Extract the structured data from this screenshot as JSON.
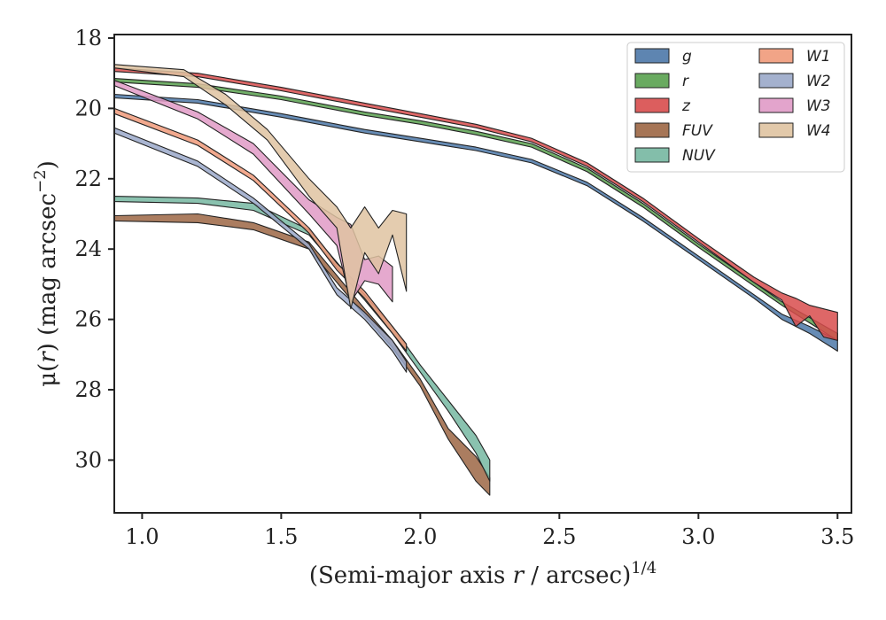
{
  "chart_data": {
    "type": "area",
    "xlabel": "(Semi-major axis r / arcsec)^1/4",
    "xlabel_parts": {
      "prefix": "(Semi-major axis ",
      "var": "r",
      "mid": " / arcsec)",
      "sup": "1/4"
    },
    "ylabel": "μ(r) (mag arcsec^−2)",
    "ylabel_parts": {
      "prefix": "μ(",
      "var": "r",
      "mid": ") (mag arcsec",
      "sup": "−2",
      "suffix": ")"
    },
    "xlim": [
      0.9,
      3.55
    ],
    "ylim": [
      31.5,
      17.9
    ],
    "y_inverted": true,
    "xticks": [
      "1.0",
      "1.5",
      "2.0",
      "2.5",
      "3.0",
      "3.5"
    ],
    "xtick_values": [
      1.0,
      1.5,
      2.0,
      2.5,
      3.0,
      3.5
    ],
    "yticks": [
      "18",
      "20",
      "22",
      "24",
      "26",
      "28",
      "30"
    ],
    "ytick_values": [
      18,
      20,
      22,
      24,
      26,
      28,
      30
    ],
    "grid": false,
    "legend_placement": "top-right",
    "legend_columns": 2,
    "series": [
      {
        "name": "g",
        "color": "#4c78a8",
        "x": [
          0.9,
          1.2,
          1.5,
          1.8,
          2.0,
          2.2,
          2.4,
          2.6,
          2.8,
          3.0,
          3.2,
          3.3,
          3.4,
          3.5
        ],
        "y1": [
          19.7,
          19.85,
          20.25,
          20.7,
          20.95,
          21.2,
          21.55,
          22.2,
          23.2,
          24.3,
          25.4,
          26.0,
          26.4,
          26.9
        ],
        "y2": [
          19.6,
          19.75,
          20.15,
          20.6,
          20.85,
          21.1,
          21.45,
          22.1,
          23.1,
          24.2,
          25.3,
          25.85,
          26.2,
          26.6
        ]
      },
      {
        "name": "r",
        "color": "#59a14f",
        "x": [
          0.9,
          1.2,
          1.5,
          1.8,
          2.0,
          2.2,
          2.4,
          2.6,
          2.8,
          3.0,
          3.2,
          3.3,
          3.4,
          3.5
        ],
        "y1": [
          19.25,
          19.4,
          19.75,
          20.2,
          20.45,
          20.75,
          21.1,
          21.8,
          22.8,
          23.95,
          25.05,
          25.6,
          26.1,
          26.6
        ],
        "y2": [
          19.15,
          19.3,
          19.65,
          20.1,
          20.35,
          20.65,
          21.0,
          21.7,
          22.7,
          23.85,
          24.95,
          25.5,
          25.95,
          26.4
        ]
      },
      {
        "name": "z",
        "color": "#d84c4c",
        "x": [
          0.9,
          1.2,
          1.5,
          1.8,
          2.0,
          2.2,
          2.4,
          2.6,
          2.8,
          3.0,
          3.2,
          3.3,
          3.35,
          3.4,
          3.45,
          3.5
        ],
        "y1": [
          18.95,
          19.1,
          19.5,
          19.95,
          20.25,
          20.55,
          20.95,
          21.65,
          22.65,
          23.8,
          24.95,
          25.45,
          26.2,
          25.9,
          26.5,
          26.6
        ],
        "y2": [
          18.85,
          19.0,
          19.4,
          19.85,
          20.15,
          20.45,
          20.85,
          21.55,
          22.55,
          23.7,
          24.8,
          25.25,
          25.4,
          25.6,
          25.7,
          25.8
        ]
      },
      {
        "name": "FUV",
        "color": "#9c6644",
        "x": [
          0.9,
          1.2,
          1.4,
          1.6,
          1.8,
          1.9,
          2.0,
          2.1,
          2.2,
          2.25
        ],
        "y1": [
          23.2,
          23.25,
          23.45,
          24.0,
          25.9,
          26.8,
          27.9,
          29.4,
          30.6,
          31.0
        ],
        "y2": [
          23.05,
          23.0,
          23.25,
          23.8,
          25.7,
          26.6,
          27.7,
          29.1,
          29.9,
          30.5
        ]
      },
      {
        "name": "NUV",
        "color": "#76b7a1",
        "x": [
          0.9,
          1.2,
          1.4,
          1.6,
          1.8,
          1.9,
          2.0,
          2.1,
          2.2,
          2.25
        ],
        "y1": [
          22.65,
          22.7,
          22.9,
          23.6,
          25.45,
          26.4,
          27.5,
          28.6,
          29.8,
          30.6
        ],
        "y2": [
          22.5,
          22.55,
          22.7,
          23.45,
          25.3,
          26.2,
          27.3,
          28.3,
          29.3,
          30.0
        ]
      },
      {
        "name": "W1",
        "color": "#f09a7a",
        "x": [
          0.9,
          1.2,
          1.4,
          1.6,
          1.7,
          1.8,
          1.9,
          1.95
        ],
        "y1": [
          20.15,
          21.05,
          22.05,
          23.55,
          24.6,
          25.4,
          26.4,
          26.9
        ],
        "y2": [
          20.0,
          20.9,
          21.9,
          23.4,
          24.4,
          25.2,
          26.2,
          26.7
        ]
      },
      {
        "name": "W2",
        "color": "#9aa8c9",
        "x": [
          0.9,
          1.2,
          1.4,
          1.6,
          1.7,
          1.8,
          1.9,
          1.95
        ],
        "y1": [
          20.7,
          21.65,
          22.7,
          24.0,
          25.3,
          26.0,
          26.9,
          27.5
        ],
        "y2": [
          20.55,
          21.5,
          22.55,
          23.85,
          25.1,
          25.8,
          26.6,
          27.2
        ]
      },
      {
        "name": "W3",
        "color": "#e09ac6",
        "x": [
          0.9,
          1.2,
          1.4,
          1.6,
          1.7,
          1.75,
          1.8,
          1.85,
          1.9
        ],
        "y1": [
          19.35,
          20.3,
          21.3,
          23.0,
          23.9,
          25.5,
          24.9,
          25.0,
          25.5
        ],
        "y2": [
          19.2,
          20.1,
          21.0,
          22.6,
          23.1,
          23.3,
          24.3,
          24.2,
          24.5
        ]
      },
      {
        "name": "W4",
        "color": "#dfc3a1",
        "x": [
          0.9,
          1.15,
          1.3,
          1.45,
          1.6,
          1.7,
          1.75,
          1.8,
          1.85,
          1.9,
          1.95
        ],
        "y1": [
          18.85,
          19.1,
          19.9,
          20.9,
          22.5,
          23.4,
          25.7,
          24.1,
          24.7,
          23.6,
          25.2
        ],
        "y2": [
          18.75,
          18.9,
          19.6,
          20.6,
          22.0,
          22.8,
          23.4,
          22.8,
          23.4,
          22.9,
          23.0
        ]
      }
    ]
  }
}
